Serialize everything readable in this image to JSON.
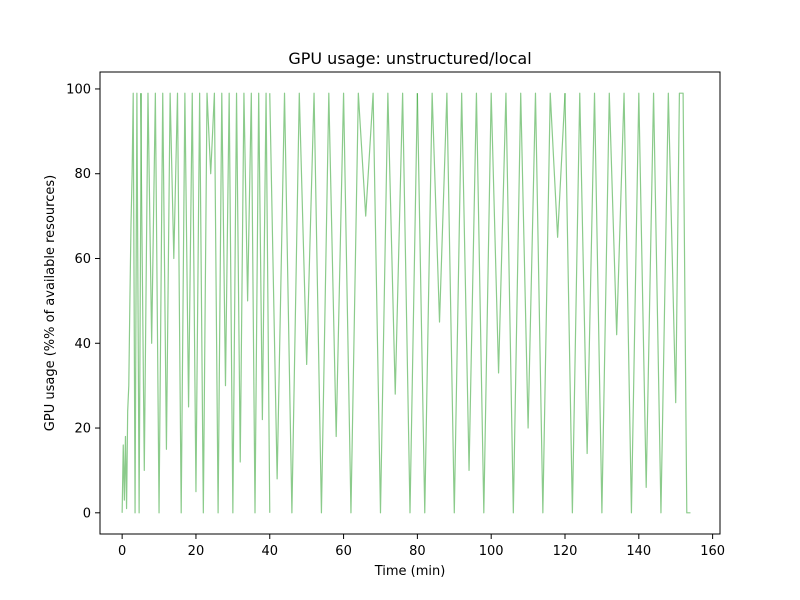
{
  "chart_data": {
    "type": "line",
    "title": "GPU usage: unstructured/local",
    "xlabel": "Time (min)",
    "ylabel": "GPU usage (%% of available resources)",
    "xlim": [
      -6,
      162
    ],
    "ylim": [
      -5,
      104
    ],
    "xticks": [
      0,
      20,
      40,
      60,
      80,
      100,
      120,
      140,
      160
    ],
    "yticks": [
      0,
      20,
      40,
      60,
      80,
      100
    ],
    "xtick_labels": [
      "0",
      "20",
      "40",
      "60",
      "80",
      "100",
      "120",
      "140",
      "160"
    ],
    "ytick_labels": [
      "0",
      "20",
      "40",
      "60",
      "80",
      "100"
    ],
    "grid": false,
    "legend": "none",
    "color": "#2ca02c",
    "series": [
      {
        "x": [
          0,
          0.3,
          0.6,
          0.9,
          1.2,
          1.5,
          1.8,
          2.1,
          2.4,
          2.7,
          3.0,
          3.5,
          4.0,
          4.6,
          5.2
        ],
        "y": [
          0,
          16,
          3,
          18,
          1,
          24,
          30,
          50,
          68,
          80,
          99,
          0,
          99,
          0,
          99
        ]
      },
      {
        "x": [
          5,
          6,
          7,
          8,
          9,
          10,
          11,
          12,
          13,
          14,
          15,
          16,
          17,
          18,
          19,
          20,
          21,
          22,
          23,
          24,
          25,
          26,
          27,
          28,
          29,
          30,
          31,
          32,
          33,
          34,
          35,
          36,
          37,
          38,
          39,
          40
        ],
        "y": [
          99,
          10,
          99,
          40,
          99,
          0,
          99,
          15,
          99,
          60,
          99,
          0,
          99,
          25,
          99,
          5,
          99,
          0,
          99,
          80,
          99,
          0,
          99,
          30,
          99,
          0,
          99,
          12,
          99,
          50,
          99,
          0,
          99,
          22,
          99,
          0
        ]
      },
      {
        "x": [
          40,
          42,
          44,
          46,
          48,
          50,
          52,
          54,
          56,
          58,
          60,
          62,
          64,
          66,
          68,
          70,
          72,
          74,
          76,
          78,
          80
        ],
        "y": [
          99,
          8,
          99,
          0,
          99,
          35,
          99,
          0,
          99,
          18,
          99,
          0,
          99,
          70,
          99,
          0,
          99,
          28,
          99,
          0,
          99
        ]
      },
      {
        "x": [
          80,
          82,
          84,
          86,
          88,
          90,
          92,
          94,
          96,
          98,
          100,
          102,
          104,
          106,
          108,
          110,
          112,
          114,
          116,
          118,
          120
        ],
        "y": [
          99,
          0,
          99,
          45,
          99,
          0,
          99,
          10,
          99,
          0,
          99,
          33,
          99,
          0,
          99,
          20,
          99,
          0,
          99,
          65,
          99
        ]
      },
      {
        "x": [
          120,
          122,
          124,
          126,
          128,
          130,
          132,
          134,
          136,
          138,
          140,
          142,
          144,
          146,
          148,
          150,
          151,
          152,
          153,
          154
        ],
        "y": [
          99,
          0,
          99,
          14,
          99,
          0,
          99,
          42,
          99,
          0,
          99,
          6,
          99,
          0,
          99,
          26,
          99,
          99,
          0,
          0
        ]
      }
    ]
  }
}
